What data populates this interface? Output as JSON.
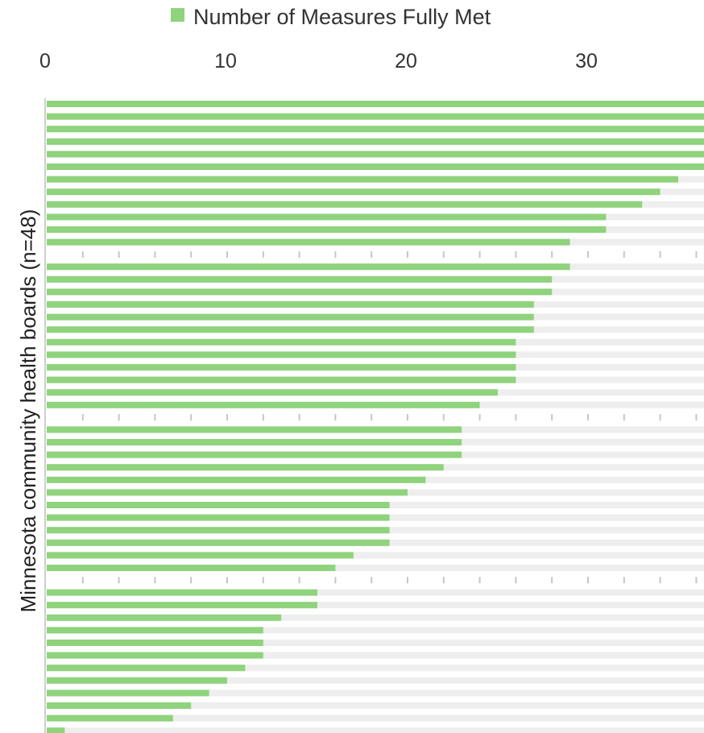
{
  "chart_data": {
    "type": "bar",
    "orientation": "horizontal",
    "legend": {
      "label": "Number of Measures Fully Met",
      "color": "#8fd37c",
      "position": "top"
    },
    "ylabel": "Minnesota community health boards (n=48)",
    "xlabel": "",
    "x_ticks": [
      "0",
      "10",
      "20",
      "30"
    ],
    "xlim": [
      0,
      36.5
    ],
    "grid": false,
    "colors": {
      "bar": "#8fd37c",
      "track": "#eeeeee",
      "axis": "#bfbfbf",
      "tick": "#c6c6c6"
    },
    "series": [
      {
        "values": [
          37,
          37,
          37,
          37,
          37,
          37,
          35,
          34,
          33,
          31,
          31,
          29,
          29,
          28,
          28,
          27,
          27,
          27,
          26,
          26,
          26,
          26,
          25,
          24,
          23,
          23,
          23,
          22,
          21,
          20,
          19,
          19,
          19,
          19,
          17,
          16,
          15,
          15,
          13,
          12,
          12,
          12,
          11,
          10,
          9,
          8,
          7,
          1
        ]
      }
    ]
  }
}
